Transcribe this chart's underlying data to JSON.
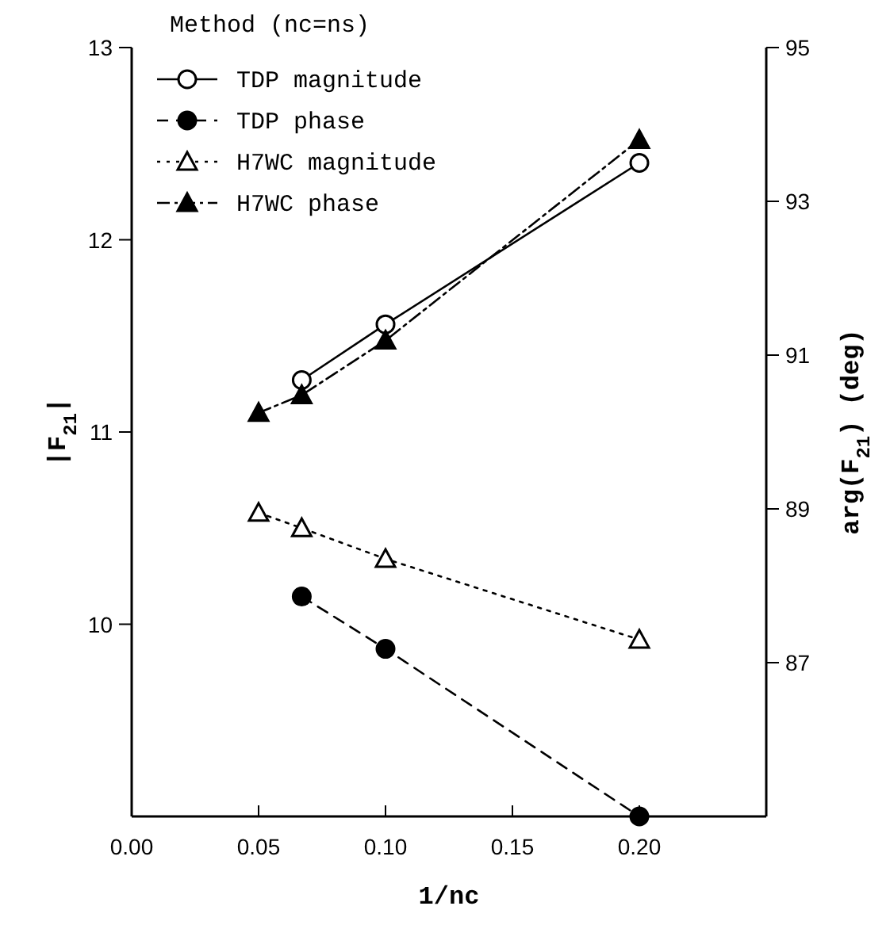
{
  "chart_data": {
    "type": "line",
    "xlabel": "1/nc",
    "ylabel": "|F$_{21}$|",
    "y2label": "arg(F$_{21}$)  (deg)",
    "legend_title": "Method (nc=ns)",
    "legend": "top left",
    "xlim": [
      0,
      0.25
    ],
    "xticks": [
      {
        "value": 0,
        "label": "0.00"
      },
      {
        "value": 0.05,
        "label": "0.05"
      },
      {
        "value": 0.1,
        "label": "0.10"
      },
      {
        "value": 0.15,
        "label": "0.15"
      },
      {
        "value": 0.2,
        "label": "0.20"
      }
    ],
    "ylim": [
      9,
      13
    ],
    "yticks": [
      10,
      11,
      12,
      13
    ],
    "y2lim": [
      85,
      95
    ],
    "y2ticks": [
      87,
      89,
      91,
      93,
      95
    ],
    "series": [
      {
        "name": "TDP magnitude",
        "color": "#000000",
        "marker": "circle",
        "line_style": "solid",
        "x": [
          0.067,
          0.1,
          0.2
        ],
        "values": [
          11.27,
          11.56,
          12.4
        ]
      },
      {
        "name": "TDP phase",
        "color": "#000000",
        "marker": "circle",
        "line_style": "dashed",
        "axis": "y2",
        "x": [
          0.067,
          0.1,
          0.2
        ],
        "values": [
          87.86,
          87.18,
          85.0
        ]
      },
      {
        "name": "H7WC magnitude",
        "color": "#000000",
        "marker": "triangle",
        "line_style": "dotted",
        "x": [
          0.05,
          0.067,
          0.1,
          0.2
        ],
        "values": [
          10.58,
          10.5,
          10.34,
          9.92
        ]
      },
      {
        "name": "H7WC phase",
        "color": "#000000",
        "marker": "triangle",
        "line_style": "dashdot",
        "axis": "y2",
        "x": [
          0.05,
          0.067,
          0.1,
          0.2
        ],
        "values": [
          90.25,
          90.48,
          91.19,
          93.8
        ]
      }
    ]
  }
}
